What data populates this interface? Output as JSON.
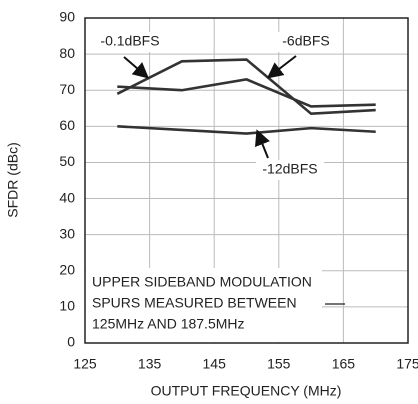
{
  "chart_data": {
    "type": "line",
    "x_label": "OUTPUT FREQUENCY (MHz)",
    "y_label": "SFDR (dBc)",
    "x": [
      130,
      140,
      150,
      160,
      170
    ],
    "series": [
      {
        "name": "-0.1dBFS",
        "color": "#333333",
        "values": [
          69,
          78,
          78.5,
          63.5,
          64.5
        ]
      },
      {
        "name": "-6dBFS",
        "color": "#333333",
        "values": [
          71,
          70,
          73,
          65.5,
          66
        ]
      },
      {
        "name": "-12dBFS",
        "color": "#333333",
        "values": [
          60,
          59,
          58,
          59.5,
          58.5
        ]
      }
    ],
    "note": [
      "UPPER SIDEBAND MODULATION",
      "SPURS MEASURED BETWEEN",
      "125MHz AND 187.5MHz"
    ],
    "xlim": [
      125,
      175
    ],
    "xticks": [
      125,
      135,
      145,
      155,
      165,
      175
    ],
    "ylim": [
      0,
      90
    ],
    "yticks": [
      0,
      10,
      20,
      30,
      40,
      50,
      60,
      70,
      80,
      90
    ],
    "grid": true
  }
}
